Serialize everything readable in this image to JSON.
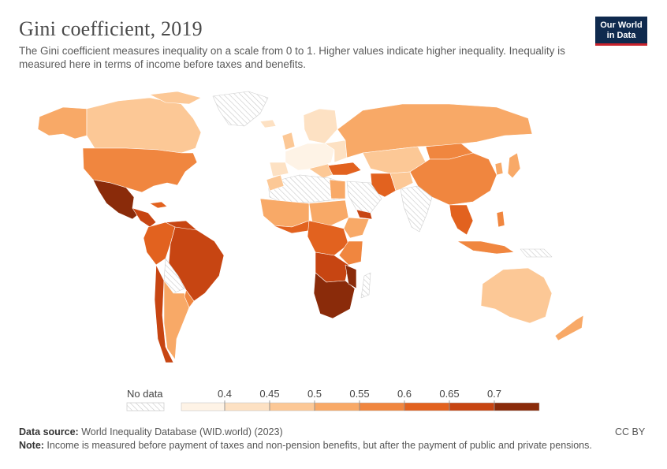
{
  "header": {
    "title": "Gini coefficient, 2019",
    "subtitle": "The Gini coefficient measures inequality on a scale from 0 to 1. Higher values indicate higher inequality. Inequality is measured here in terms of income before taxes and benefits.",
    "logo_line1": "Our World",
    "logo_line2": "in Data"
  },
  "legend": {
    "no_data_label": "No data",
    "ticks": [
      "0.4",
      "0.45",
      "0.5",
      "0.55",
      "0.6",
      "0.65",
      "0.7"
    ],
    "colors": [
      "#fef3e6",
      "#fde1c3",
      "#fcc896",
      "#f8a967",
      "#f0863f",
      "#e2621f",
      "#c74512",
      "#8a2b0a"
    ]
  },
  "footer": {
    "source_label": "Data source:",
    "source_text": " World Inequality Database (WID.world) (2023)",
    "note_label": "Note:",
    "note_text": " Income is measured before payment of taxes and non-pension benefits, but after the payment of public and private pensions.",
    "license": "CC BY"
  }
}
